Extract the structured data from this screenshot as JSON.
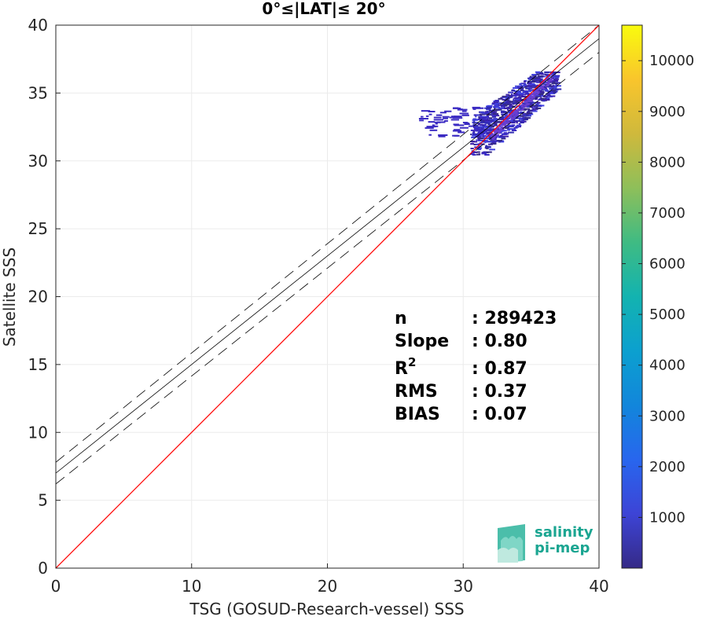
{
  "chart_data": {
    "type": "heatmap",
    "title": "0°≤|LAT|≤ 20°",
    "xlabel": "TSG (GOSUD-Research-vessel) SSS",
    "ylabel": "Satellite SSS",
    "xlim": [
      0,
      40
    ],
    "ylim": [
      0,
      40
    ],
    "x_ticks": [
      "0",
      "10",
      "20",
      "30",
      "40"
    ],
    "y_ticks": [
      "0",
      "5",
      "10",
      "15",
      "20",
      "25",
      "30",
      "35",
      "40"
    ],
    "grid": true,
    "one_to_one_line": {
      "color": "#ff0000",
      "x": [
        0,
        40
      ],
      "y": [
        0,
        40
      ]
    },
    "regression_line": {
      "color": "#000000",
      "x": [
        0,
        40
      ],
      "y": [
        7.0,
        39.0
      ]
    },
    "regression_bounds": [
      {
        "x": [
          0,
          40
        ],
        "y": [
          7.8,
          40.0
        ]
      },
      {
        "x": [
          0,
          40
        ],
        "y": [
          6.2,
          38.0
        ]
      }
    ],
    "density_cluster": {
      "x_range": [
        26.5,
        37.0
      ],
      "y_range": [
        30.5,
        36.6
      ],
      "center": [
        34.0,
        33.5
      ]
    },
    "colorbar": {
      "min": 0,
      "max": 10700,
      "ticks": [
        "1000",
        "2000",
        "3000",
        "4000",
        "5000",
        "6000",
        "7000",
        "8000",
        "9000",
        "10000"
      ],
      "tick_values": [
        1000,
        2000,
        3000,
        4000,
        5000,
        6000,
        7000,
        8000,
        9000,
        10000
      ],
      "colormap": "parula"
    },
    "stats": [
      {
        "label": "n",
        "value": ": 289423"
      },
      {
        "label": "Slope",
        "value": ": 0.80"
      },
      {
        "label": "R",
        "sup": "2",
        "value": ": 0.87"
      },
      {
        "label": "RMS",
        "value": ": 0.37"
      },
      {
        "label": "BIAS",
        "value": ": 0.07"
      }
    ]
  },
  "logo": {
    "line1": "salinity",
    "line2": "pi-mep"
  }
}
